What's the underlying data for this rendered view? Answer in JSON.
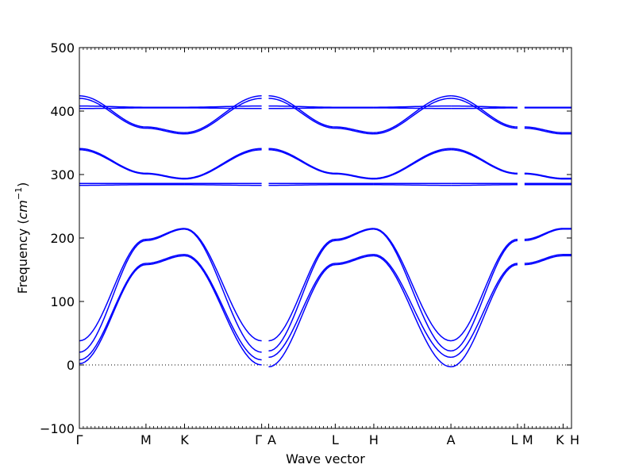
{
  "chart_data": {
    "type": "line",
    "title": "",
    "xlabel": "Wave vector",
    "ylabel": "Frequency",
    "ylabel_unit_base": "cm",
    "ylabel_unit_exp": "−1",
    "ylim": [
      -100,
      500
    ],
    "xlim": [
      0,
      7.02
    ],
    "grid": false,
    "yticks": [
      "−100",
      "0",
      "100",
      "200",
      "300",
      "400",
      "500"
    ],
    "ytick_values": [
      -100,
      0,
      100,
      200,
      300,
      400,
      500
    ],
    "zero_line": true,
    "line_color": "#0000ff",
    "symmetry_points": [
      {
        "label": "Γ",
        "x": 0
      },
      {
        "label": "M",
        "x": 0.95
      },
      {
        "label": "K",
        "x": 1.5
      },
      {
        "label": "Γ",
        "x": 2.6
      },
      {
        "label": "A",
        "x": 2.7
      },
      {
        "label": "L",
        "x": 3.65
      },
      {
        "label": "H",
        "x": 4.2
      },
      {
        "label": "A",
        "x": 5.3
      },
      {
        "label": "L",
        "x": 6.25
      },
      {
        "label": "M",
        "x": 6.35
      },
      {
        "label": "K",
        "x": 6.9
      },
      {
        "label": "H",
        "x": 7.02
      }
    ],
    "segments": [
      {
        "x": [
          0,
          0.95,
          1.5
        ],
        "series": {
          "low1": [
            2,
            158,
            172
          ],
          "low2": [
            8,
            160,
            174
          ],
          "low3": [
            20,
            196,
            214
          ],
          "low4": [
            38,
            198,
            215
          ],
          "opt1": [
            283,
            284,
            284
          ],
          "opt2": [
            286,
            286,
            286
          ],
          "mid1": [
            339,
            301,
            293
          ],
          "mid2": [
            341,
            302,
            294
          ],
          "flat1": [
            404,
            405,
            405
          ],
          "flat2": [
            408,
            406,
            406
          ],
          "top1": [
            420,
            373,
            364
          ],
          "top2": [
            424,
            375,
            366
          ]
        }
      },
      {
        "x": [
          1.5,
          2.6
        ],
        "series": {
          "low1": [
            172,
            0
          ],
          "low2": [
            174,
            8
          ],
          "low3": [
            214,
            20
          ],
          "low4": [
            215,
            38
          ],
          "opt1": [
            284,
            283
          ],
          "opt2": [
            286,
            286
          ],
          "mid1": [
            293,
            339
          ],
          "mid2": [
            294,
            341
          ],
          "flat1": [
            405,
            404
          ],
          "flat2": [
            406,
            408
          ],
          "top1": [
            364,
            420
          ],
          "top2": [
            366,
            424
          ]
        }
      },
      {
        "x": [
          2.7,
          3.65,
          4.2
        ],
        "series": {
          "low1": [
            -3,
            158,
            172
          ],
          "low2": [
            12,
            160,
            174
          ],
          "low3": [
            22,
            196,
            214
          ],
          "low4": [
            38,
            198,
            215
          ],
          "opt1": [
            283,
            284,
            284
          ],
          "opt2": [
            286,
            286,
            286
          ],
          "mid1": [
            339,
            301,
            293
          ],
          "mid2": [
            341,
            302,
            294
          ],
          "flat1": [
            404,
            405,
            405
          ],
          "flat2": [
            408,
            406,
            406
          ],
          "top1": [
            420,
            373,
            364
          ],
          "top2": [
            424,
            375,
            366
          ]
        }
      },
      {
        "x": [
          4.2,
          5.3
        ],
        "series": {
          "low1": [
            172,
            -3
          ],
          "low2": [
            174,
            12
          ],
          "low3": [
            214,
            22
          ],
          "low4": [
            215,
            38
          ],
          "opt1": [
            284,
            283
          ],
          "opt2": [
            286,
            286
          ],
          "mid1": [
            293,
            339
          ],
          "mid2": [
            294,
            341
          ],
          "flat1": [
            405,
            404
          ],
          "flat2": [
            406,
            408
          ],
          "top1": [
            364,
            420
          ],
          "top2": [
            366,
            424
          ]
        }
      },
      {
        "x": [
          5.3,
          6.25
        ],
        "series": {
          "low1": [
            -3,
            158
          ],
          "low2": [
            12,
            160
          ],
          "low3": [
            22,
            196
          ],
          "low4": [
            38,
            198
          ],
          "opt1": [
            283,
            284
          ],
          "opt2": [
            286,
            286
          ],
          "mid1": [
            339,
            301
          ],
          "mid2": [
            341,
            302
          ],
          "flat1": [
            404,
            405
          ],
          "flat2": [
            408,
            406
          ],
          "top1": [
            420,
            373
          ],
          "top2": [
            424,
            375
          ]
        }
      },
      {
        "x": [
          6.35,
          6.9,
          7.02
        ],
        "series": {
          "low1": [
            158,
            172,
            172
          ],
          "low2": [
            160,
            174,
            174
          ],
          "low3": [
            196,
            214,
            214
          ],
          "low4": [
            198,
            215,
            215
          ],
          "opt1": [
            284,
            284,
            284
          ],
          "opt2": [
            286,
            286,
            286
          ],
          "mid1": [
            301,
            293,
            293
          ],
          "mid2": [
            302,
            294,
            294
          ],
          "flat1": [
            405,
            405,
            405
          ],
          "flat2": [
            406,
            406,
            406
          ],
          "top1": [
            373,
            364,
            364
          ],
          "top2": [
            375,
            366,
            366
          ]
        }
      }
    ]
  }
}
